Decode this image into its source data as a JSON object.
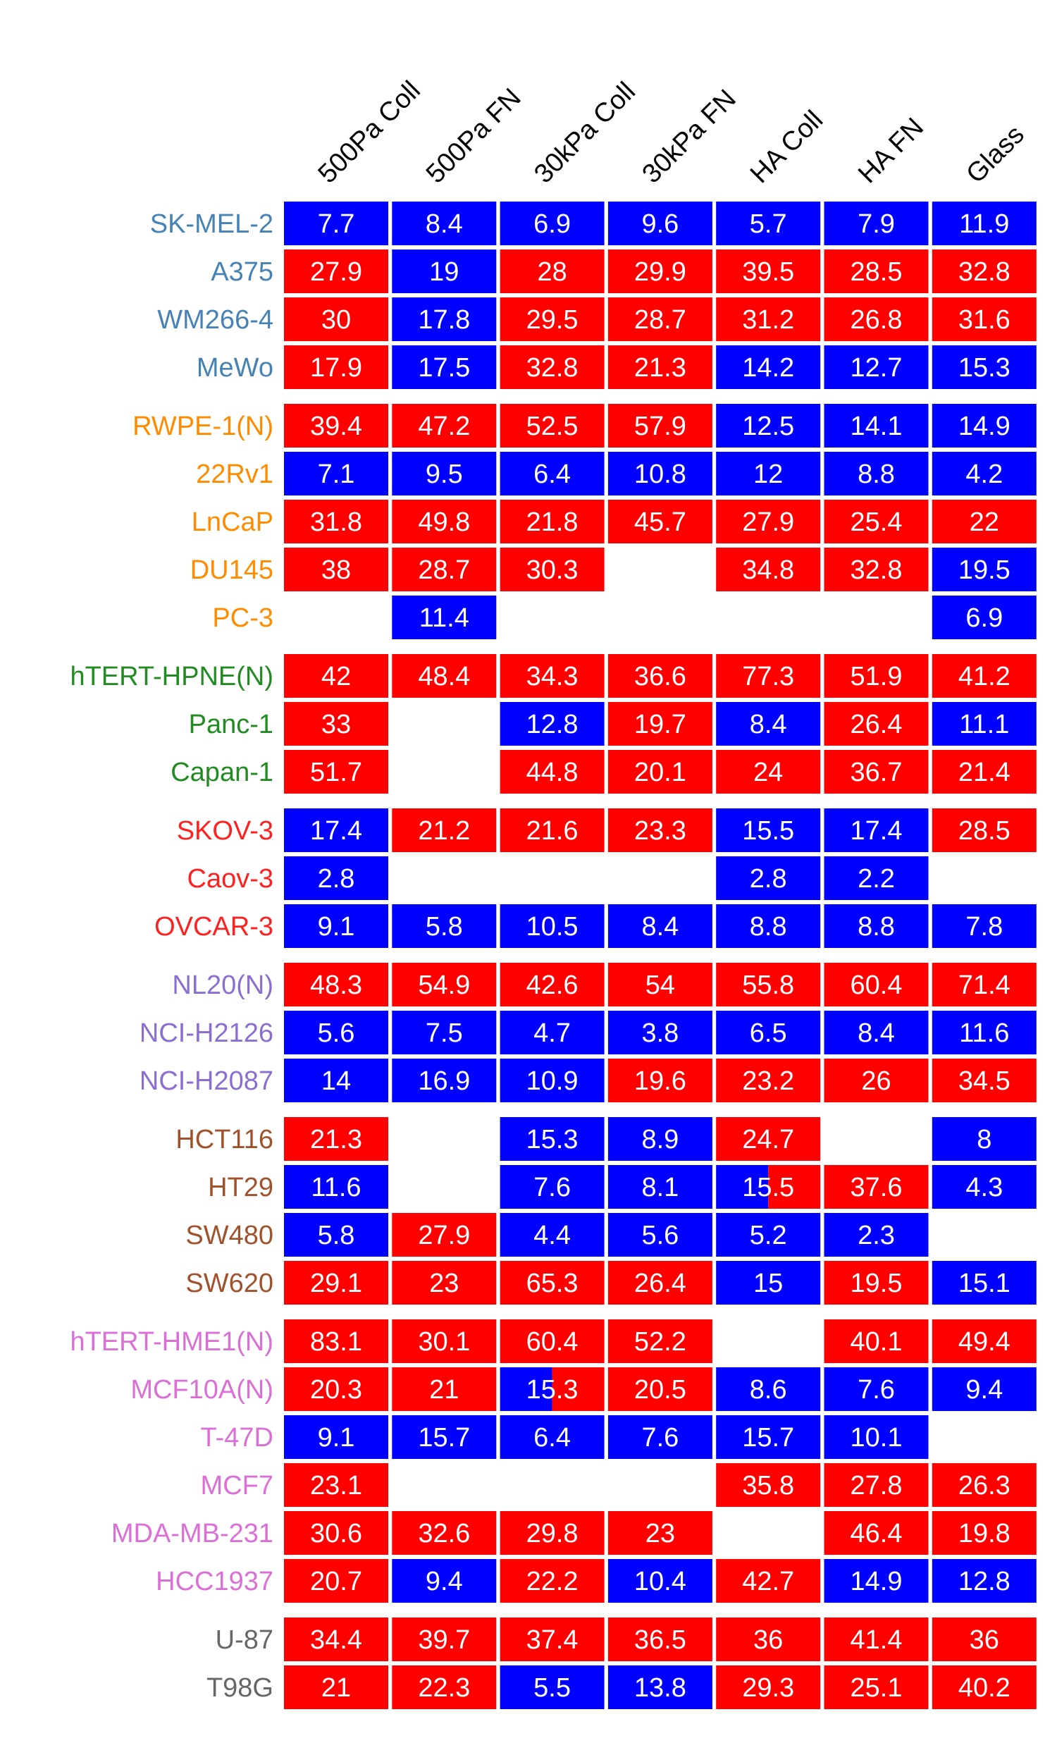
{
  "chart_data": {
    "type": "heatmap",
    "title": "",
    "xlabel": "",
    "ylabel": "",
    "columns": [
      "500Pa Coll",
      "500Pa FN",
      "30kPa Coll",
      "30kPa FN",
      "HA Coll",
      "HA FN",
      "Glass"
    ],
    "cell_colors": {
      "R": "#ff0000",
      "B": "#0000ff"
    },
    "groups": [
      {
        "color": "#4682b4",
        "rows": [
          {
            "label": "SK-MEL-2",
            "values": [
              "7.7",
              "8.4",
              "6.9",
              "9.6",
              "5.7",
              "7.9",
              "11.9"
            ],
            "colors": [
              "B",
              "B",
              "B",
              "B",
              "B",
              "B",
              "B"
            ]
          },
          {
            "label": "A375",
            "values": [
              "27.9",
              "19",
              "28",
              "29.9",
              "39.5",
              "28.5",
              "32.8"
            ],
            "colors": [
              "R",
              "B",
              "R",
              "R",
              "R",
              "R",
              "R"
            ]
          },
          {
            "label": "WM266-4",
            "values": [
              "30",
              "17.8",
              "29.5",
              "28.7",
              "31.2",
              "26.8",
              "31.6"
            ],
            "colors": [
              "R",
              "B",
              "R",
              "R",
              "R",
              "R",
              "R"
            ]
          },
          {
            "label": "MeWo",
            "values": [
              "17.9",
              "17.5",
              "32.8",
              "21.3",
              "14.2",
              "12.7",
              "15.3"
            ],
            "colors": [
              "R",
              "B",
              "R",
              "R",
              "B",
              "B",
              "B"
            ]
          }
        ]
      },
      {
        "color": "#ff8c00",
        "rows": [
          {
            "label": "RWPE-1(N)",
            "values": [
              "39.4",
              "47.2",
              "52.5",
              "57.9",
              "12.5",
              "14.1",
              "14.9"
            ],
            "colors": [
              "R",
              "R",
              "R",
              "R",
              "B",
              "B",
              "B"
            ]
          },
          {
            "label": "22Rv1",
            "values": [
              "7.1",
              "9.5",
              "6.4",
              "10.8",
              "12",
              "8.8",
              "4.2"
            ],
            "colors": [
              "B",
              "B",
              "B",
              "B",
              "B",
              "B",
              "B"
            ]
          },
          {
            "label": "LnCaP",
            "values": [
              "31.8",
              "49.8",
              "21.8",
              "45.7",
              "27.9",
              "25.4",
              "22"
            ],
            "colors": [
              "R",
              "R",
              "R",
              "R",
              "R",
              "R",
              "R"
            ]
          },
          {
            "label": "DU145",
            "values": [
              "38",
              "28.7",
              "30.3",
              null,
              "34.8",
              "32.8",
              "19.5"
            ],
            "colors": [
              "R",
              "R",
              "R",
              null,
              "R",
              "R",
              "B"
            ]
          },
          {
            "label": "PC-3",
            "values": [
              null,
              "11.4",
              null,
              null,
              null,
              null,
              "6.9"
            ],
            "colors": [
              null,
              "B",
              null,
              null,
              null,
              null,
              "B"
            ]
          }
        ]
      },
      {
        "color": "#228b22",
        "rows": [
          {
            "label": "hTERT-HPNE(N)",
            "values": [
              "42",
              "48.4",
              "34.3",
              "36.6",
              "77.3",
              "51.9",
              "41.2"
            ],
            "colors": [
              "R",
              "R",
              "R",
              "R",
              "R",
              "R",
              "R"
            ]
          },
          {
            "label": "Panc-1",
            "values": [
              "33",
              null,
              "12.8",
              "19.7",
              "8.4",
              "26.4",
              "11.1"
            ],
            "colors": [
              "R",
              null,
              "B",
              "R",
              "B",
              "R",
              "B"
            ]
          },
          {
            "label": "Capan-1",
            "values": [
              "51.7",
              null,
              "44.8",
              "20.1",
              "24",
              "36.7",
              "21.4"
            ],
            "colors": [
              "R",
              null,
              "R",
              "R",
              "R",
              "R",
              "R"
            ]
          }
        ]
      },
      {
        "color": "#ff2020",
        "rows": [
          {
            "label": "SKOV-3",
            "values": [
              "17.4",
              "21.2",
              "21.6",
              "23.3",
              "15.5",
              "17.4",
              "28.5"
            ],
            "colors": [
              "B",
              "R",
              "R",
              "R",
              "B",
              "B",
              "R"
            ]
          },
          {
            "label": "Caov-3",
            "values": [
              "2.8",
              null,
              null,
              null,
              "2.8",
              "2.2",
              null
            ],
            "colors": [
              "B",
              null,
              null,
              null,
              "B",
              "B",
              null
            ]
          },
          {
            "label": "OVCAR-3",
            "values": [
              "9.1",
              "5.8",
              "10.5",
              "8.4",
              "8.8",
              "8.8",
              "7.8"
            ],
            "colors": [
              "B",
              "B",
              "B",
              "B",
              "B",
              "B",
              "B"
            ]
          }
        ]
      },
      {
        "color": "#8a6fd1",
        "rows": [
          {
            "label": "NL20(N)",
            "values": [
              "48.3",
              "54.9",
              "42.6",
              "54",
              "55.8",
              "60.4",
              "71.4"
            ],
            "colors": [
              "R",
              "R",
              "R",
              "R",
              "R",
              "R",
              "R"
            ]
          },
          {
            "label": "NCI-H2126",
            "values": [
              "5.6",
              "7.5",
              "4.7",
              "3.8",
              "6.5",
              "8.4",
              "11.6"
            ],
            "colors": [
              "B",
              "B",
              "B",
              "B",
              "B",
              "B",
              "B"
            ]
          },
          {
            "label": "NCI-H2087",
            "values": [
              "14",
              "16.9",
              "10.9",
              "19.6",
              "23.2",
              "26",
              "34.5"
            ],
            "colors": [
              "B",
              "B",
              "B",
              "R",
              "R",
              "R",
              "R"
            ]
          }
        ]
      },
      {
        "color": "#a0522d",
        "rows": [
          {
            "label": "HCT116",
            "values": [
              "21.3",
              null,
              "15.3",
              "8.9",
              "24.7",
              null,
              "8"
            ],
            "colors": [
              "R",
              null,
              "B",
              "B",
              "R",
              null,
              "B"
            ]
          },
          {
            "label": "HT29",
            "values": [
              "11.6",
              null,
              "7.6",
              "8.1",
              "15.5",
              "37.6",
              "4.3"
            ],
            "colors": [
              "B",
              null,
              "B",
              "B",
              "BR",
              "R",
              "B"
            ]
          },
          {
            "label": "SW480",
            "values": [
              "5.8",
              "27.9",
              "4.4",
              "5.6",
              "5.2",
              "2.3",
              null
            ],
            "colors": [
              "B",
              "R",
              "B",
              "B",
              "B",
              "B",
              null
            ]
          },
          {
            "label": "SW620",
            "values": [
              "29.1",
              "23",
              "65.3",
              "26.4",
              "15",
              "19.5",
              "15.1"
            ],
            "colors": [
              "R",
              "R",
              "R",
              "R",
              "B",
              "R",
              "B"
            ]
          }
        ]
      },
      {
        "color": "#da70d6",
        "rows": [
          {
            "label": "hTERT-HME1(N)",
            "values": [
              "83.1",
              "30.1",
              "60.4",
              "52.2",
              null,
              "40.1",
              "49.4"
            ],
            "colors": [
              "R",
              "R",
              "R",
              "R",
              null,
              "R",
              "R"
            ]
          },
          {
            "label": "MCF10A(N)",
            "values": [
              "20.3",
              "21",
              "15.3",
              "20.5",
              "8.6",
              "7.6",
              "9.4"
            ],
            "colors": [
              "R",
              "R",
              "BR",
              "R",
              "B",
              "B",
              "B"
            ]
          },
          {
            "label": "T-47D",
            "values": [
              "9.1",
              "15.7",
              "6.4",
              "7.6",
              "15.7",
              "10.1",
              null
            ],
            "colors": [
              "B",
              "B",
              "B",
              "B",
              "B",
              "B",
              null
            ]
          },
          {
            "label": "MCF7",
            "values": [
              "23.1",
              null,
              null,
              null,
              "35.8",
              "27.8",
              "26.3"
            ],
            "colors": [
              "R",
              null,
              null,
              null,
              "R",
              "R",
              "R"
            ]
          },
          {
            "label": "MDA-MB-231",
            "values": [
              "30.6",
              "32.6",
              "29.8",
              "23",
              null,
              "46.4",
              "19.8"
            ],
            "colors": [
              "R",
              "R",
              "R",
              "R",
              null,
              "R",
              "R"
            ]
          },
          {
            "label": "HCC1937",
            "values": [
              "20.7",
              "9.4",
              "22.2",
              "10.4",
              "42.7",
              "14.9",
              "12.8"
            ],
            "colors": [
              "R",
              "B",
              "R",
              "B",
              "R",
              "B",
              "B"
            ]
          }
        ]
      },
      {
        "color": "#666666",
        "rows": [
          {
            "label": "U-87",
            "values": [
              "34.4",
              "39.7",
              "37.4",
              "36.5",
              "36",
              "41.4",
              "36"
            ],
            "colors": [
              "R",
              "R",
              "R",
              "R",
              "R",
              "R",
              "R"
            ]
          },
          {
            "label": "T98G",
            "values": [
              "21",
              "22.3",
              "5.5",
              "13.8",
              "29.3",
              "25.1",
              "40.2"
            ],
            "colors": [
              "R",
              "R",
              "B",
              "B",
              "R",
              "R",
              "R"
            ]
          }
        ]
      }
    ]
  }
}
